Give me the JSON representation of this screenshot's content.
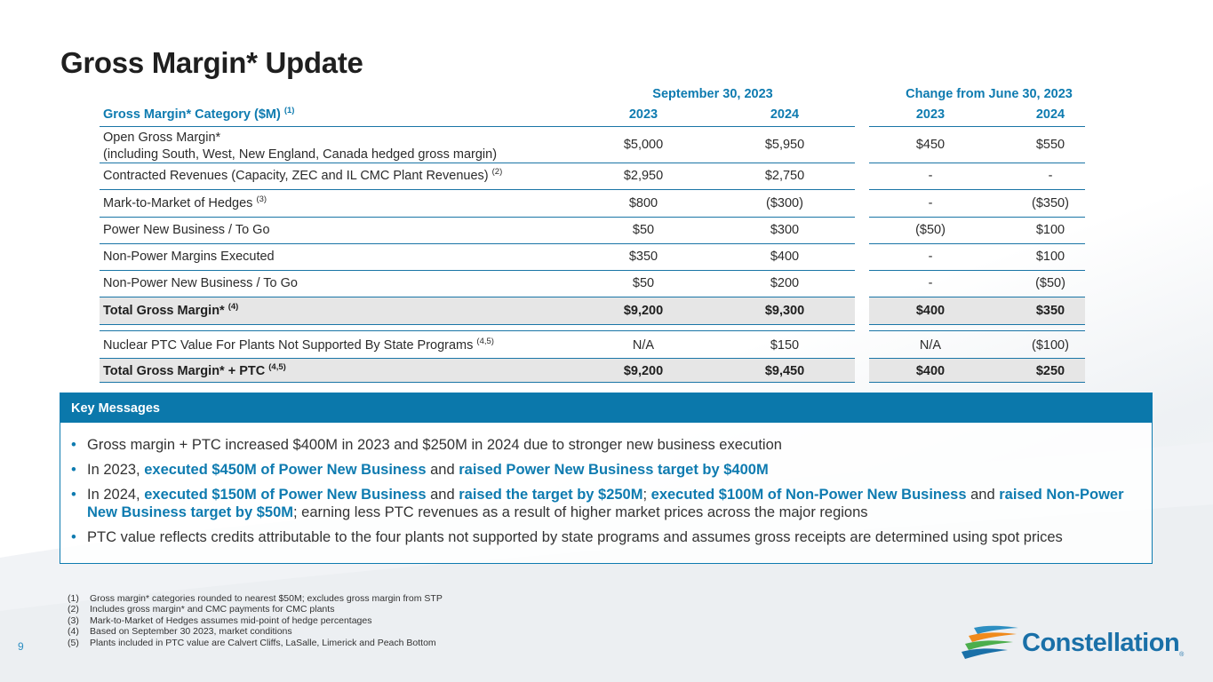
{
  "title": "Gross Margin* Update",
  "table": {
    "group_headers": [
      "September 30, 2023",
      "Change from June 30, 2023"
    ],
    "category_header": "Gross Margin* Category ($M)",
    "category_header_note": "(1)",
    "years": [
      "2023",
      "2024",
      "2023",
      "2024"
    ],
    "rows": [
      {
        "label": "Open Gross Margin*",
        "label2": "(including South, West, New England, Canada hedged gross margin)",
        "note": "",
        "values": [
          "$5,000",
          "$5,950",
          "$450",
          "$550"
        ]
      },
      {
        "label": "Contracted Revenues (Capacity, ZEC and IL CMC Plant Revenues)",
        "note": "(2)",
        "values": [
          "$2,950",
          "$2,750",
          "-",
          "-"
        ]
      },
      {
        "label": "Mark-to-Market of Hedges",
        "note": "(3)",
        "values": [
          "$800",
          "($300)",
          "-",
          "($350)"
        ]
      },
      {
        "label": "Power New Business / To Go",
        "note": "",
        "values": [
          "$50",
          "$300",
          "($50)",
          "$100"
        ]
      },
      {
        "label": "Non-Power Margins Executed",
        "note": "",
        "values": [
          "$350",
          "$400",
          "-",
          "$100"
        ]
      },
      {
        "label": "Non-Power New Business / To Go",
        "note": "",
        "values": [
          "$50",
          "$200",
          "-",
          "($50)"
        ]
      },
      {
        "label": "Total Gross Margin*",
        "note": "(4)",
        "values": [
          "$9,200",
          "$9,300",
          "$400",
          "$350"
        ]
      },
      {
        "label": "Nuclear PTC Value For Plants Not Supported By State Programs",
        "note": "(4,5)",
        "values": [
          "N/A",
          "$150",
          "N/A",
          "($100)"
        ]
      },
      {
        "label": "Total Gross Margin* + PTC",
        "note": "(4,5)",
        "values": [
          "$9,200",
          "$9,450",
          "$400",
          "$250"
        ]
      }
    ]
  },
  "key_messages": {
    "header": "Key Messages",
    "b1": "Gross margin + PTC increased $400M in 2023 and $250M in 2024 due to stronger new business execution",
    "b2": [
      "In 2023, ",
      "executed $450M of Power New Business",
      " and ",
      "raised Power New Business target by $400M"
    ],
    "b3": [
      "In 2024, ",
      "executed $150M of Power New Business",
      " and ",
      "raised the target by $250M",
      "; ",
      "executed $100M of Non-Power New Business",
      " and ",
      "raised Non-Power New Business target by $50M",
      "; earning less PTC revenues as a result of higher market prices across the major regions"
    ],
    "b4": "PTC value reflects credits attributable to the four plants not supported by state programs and assumes gross receipts are determined using spot prices"
  },
  "footnotes": [
    {
      "n": "(1)",
      "text": "Gross margin* categories rounded to nearest $50M; excludes gross margin from STP"
    },
    {
      "n": "(2)",
      "text": "Includes gross margin* and CMC payments for CMC plants"
    },
    {
      "n": "(3)",
      "text": "Mark-to-Market of Hedges assumes mid-point of hedge percentages"
    },
    {
      "n": "(4)",
      "text": "Based on September 30 2023, market conditions"
    },
    {
      "n": "(5)",
      "text": "Plants included in PTC value are Calvert Cliffs, LaSalle, Limerick and Peach Bottom"
    }
  ],
  "page_number": "9",
  "logo": {
    "name": "Constellation",
    "mark": "®",
    "icon": "constellation-swoosh-icon",
    "colors": [
      "#1a70a8",
      "#f08a1c",
      "#4cae4c",
      "#2e8fc2"
    ]
  },
  "colors": {
    "accent": "#0e7bb0",
    "header_bar": "#0b78ab",
    "shade": "#e6e6e6"
  }
}
